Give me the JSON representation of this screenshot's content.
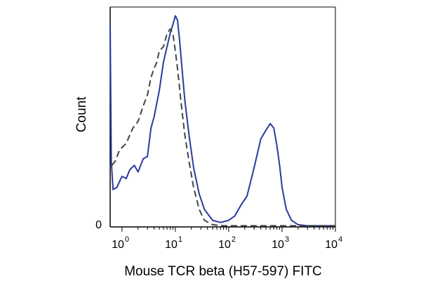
{
  "chart_data": {
    "type": "line",
    "xlabel": "Mouse TCR beta (H57-597) FITC",
    "ylabel": "Count",
    "x_scale": "log",
    "xlim": [
      0.6,
      10000
    ],
    "ylim": [
      0,
      100
    ],
    "x_ticks": [
      {
        "base": "10",
        "exp": "0",
        "value": 1
      },
      {
        "base": "10",
        "exp": "1",
        "value": 10
      },
      {
        "base": "10",
        "exp": "2",
        "value": 100
      },
      {
        "base": "10",
        "exp": "3",
        "value": 1000
      },
      {
        "base": "10",
        "exp": "4",
        "value": 10000
      }
    ],
    "y_ticks": [
      {
        "label": "0",
        "value": 0
      }
    ],
    "series": [
      {
        "style": "solid",
        "color": "#2b3a9b",
        "points": [
          [
            0.6,
            92
          ],
          [
            0.63,
            30
          ],
          [
            0.68,
            17
          ],
          [
            0.8,
            18
          ],
          [
            1.0,
            23
          ],
          [
            1.2,
            22
          ],
          [
            1.4,
            26
          ],
          [
            1.7,
            28
          ],
          [
            2.0,
            25
          ],
          [
            2.5,
            31
          ],
          [
            3.0,
            32
          ],
          [
            3.5,
            45
          ],
          [
            4.0,
            50
          ],
          [
            5.0,
            62
          ],
          [
            6.0,
            75
          ],
          [
            7.0,
            82
          ],
          [
            8.0,
            88
          ],
          [
            9.0,
            92
          ],
          [
            10.0,
            96
          ],
          [
            11.0,
            94
          ],
          [
            12.0,
            85
          ],
          [
            13.0,
            75
          ],
          [
            15.0,
            58
          ],
          [
            18.0,
            42
          ],
          [
            22.0,
            27
          ],
          [
            28.0,
            15
          ],
          [
            35.0,
            8
          ],
          [
            50.0,
            3
          ],
          [
            70.0,
            2
          ],
          [
            100.0,
            3
          ],
          [
            130.0,
            5
          ],
          [
            170.0,
            10
          ],
          [
            220.0,
            14
          ],
          [
            300.0,
            27
          ],
          [
            400.0,
            40
          ],
          [
            500.0,
            44
          ],
          [
            600.0,
            47
          ],
          [
            700.0,
            45
          ],
          [
            800.0,
            37
          ],
          [
            900.0,
            28
          ],
          [
            1000.0,
            18
          ],
          [
            1200.0,
            8
          ],
          [
            1500.0,
            3
          ],
          [
            2000.0,
            1
          ],
          [
            3000.0,
            0.5
          ],
          [
            5000.0,
            0.5
          ],
          [
            10000.0,
            0.5
          ]
        ]
      },
      {
        "style": "dashed",
        "color": "#444444",
        "points": [
          [
            0.65,
            28
          ],
          [
            0.75,
            30
          ],
          [
            0.9,
            35
          ],
          [
            1.2,
            38
          ],
          [
            1.6,
            45
          ],
          [
            2.0,
            48
          ],
          [
            2.5,
            55
          ],
          [
            3.0,
            60
          ],
          [
            3.5,
            68
          ],
          [
            4.0,
            72
          ],
          [
            4.5,
            75
          ],
          [
            5.0,
            80
          ],
          [
            6.0,
            82
          ],
          [
            7.0,
            88
          ],
          [
            8.0,
            90
          ],
          [
            9.0,
            88
          ],
          [
            10.0,
            80
          ],
          [
            11.0,
            72
          ],
          [
            13.0,
            55
          ],
          [
            15.0,
            42
          ],
          [
            18.0,
            30
          ],
          [
            22.0,
            18
          ],
          [
            28.0,
            8
          ],
          [
            35.0,
            3
          ],
          [
            50.0,
            1
          ],
          [
            80.0,
            0.5
          ],
          [
            200.0,
            0.5
          ],
          [
            10000.0,
            0.5
          ]
        ]
      }
    ]
  }
}
